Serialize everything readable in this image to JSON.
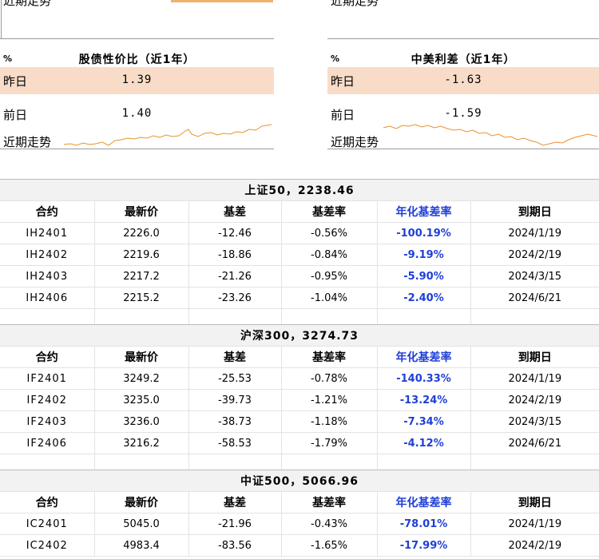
{
  "top_cut": {
    "left_label": "近期走势",
    "right_label": "近期走势"
  },
  "panels": [
    {
      "unit": "%",
      "title": "股债性价比（近1年）",
      "yesterday_label": "昨日",
      "yesterday_value": "1.39",
      "prev_label": "前日",
      "prev_value": "1.40",
      "trend_label": "近期走势",
      "line_color": "#e8922f"
    },
    {
      "unit": "%",
      "title": "中美利差（近1年）",
      "yesterday_label": "昨日",
      "yesterday_value": "-1.63",
      "prev_label": "前日",
      "prev_value": "-1.59",
      "trend_label": "近期走势",
      "line_color": "#e8922f"
    }
  ],
  "columns": [
    "合约",
    "最新价",
    "基差",
    "基差率",
    "年化基差率",
    "到期日"
  ],
  "tables": [
    {
      "title": "上证50，2238.46",
      "rows": [
        [
          "IH2401",
          "2226.0",
          "-12.46",
          "-0.56%",
          "-100.19%",
          "2024/1/19"
        ],
        [
          "IH2402",
          "2219.6",
          "-18.86",
          "-0.84%",
          "-9.19%",
          "2024/2/19"
        ],
        [
          "IH2403",
          "2217.2",
          "-21.26",
          "-0.95%",
          "-5.90%",
          "2024/3/15"
        ],
        [
          "IH2406",
          "2215.2",
          "-23.26",
          "-1.04%",
          "-2.40%",
          "2024/6/21"
        ]
      ]
    },
    {
      "title": "沪深300，3274.73",
      "rows": [
        [
          "IF2401",
          "3249.2",
          "-25.53",
          "-0.78%",
          "-140.33%",
          "2024/1/19"
        ],
        [
          "IF2402",
          "3235.0",
          "-39.73",
          "-1.21%",
          "-13.24%",
          "2024/2/19"
        ],
        [
          "IF2403",
          "3236.0",
          "-38.73",
          "-1.18%",
          "-7.34%",
          "2024/3/15"
        ],
        [
          "IF2406",
          "3216.2",
          "-58.53",
          "-1.79%",
          "-4.12%",
          "2024/6/21"
        ]
      ]
    },
    {
      "title": "中证500，5066.96",
      "rows": [
        [
          "IC2401",
          "5045.0",
          "-21.96",
          "-0.43%",
          "-78.01%",
          "2024/1/19"
        ],
        [
          "IC2402",
          "4983.4",
          "-83.56",
          "-1.65%",
          "-17.99%",
          "2024/2/19"
        ]
      ]
    }
  ]
}
